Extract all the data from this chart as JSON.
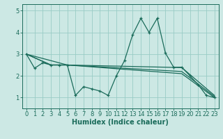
{
  "xlabel": "Humidex (Indice chaleur)",
  "xlim": [
    -0.5,
    23.5
  ],
  "ylim": [
    0.5,
    5.3
  ],
  "yticks": [
    1,
    2,
    3,
    4,
    5
  ],
  "xticks": [
    0,
    1,
    2,
    3,
    4,
    5,
    6,
    7,
    8,
    9,
    10,
    11,
    12,
    13,
    14,
    15,
    16,
    17,
    18,
    19,
    20,
    21,
    22,
    23
  ],
  "background_color": "#cce8e4",
  "grid_color": "#99ccc6",
  "line_color": "#1a6b5a",
  "line1_x": [
    0,
    1,
    2,
    3,
    4,
    5,
    6,
    7,
    8,
    9,
    10,
    11,
    12,
    13,
    14,
    15,
    16,
    17,
    18,
    19,
    20,
    21,
    22,
    23
  ],
  "line1_y": [
    3.0,
    2.35,
    2.6,
    2.5,
    2.5,
    2.5,
    1.1,
    1.5,
    1.4,
    1.3,
    1.1,
    2.0,
    2.7,
    3.9,
    4.65,
    4.0,
    4.65,
    3.05,
    2.4,
    2.4,
    2.0,
    1.6,
    1.1,
    1.0
  ],
  "line2_x": [
    0,
    3,
    5,
    19,
    23
  ],
  "line2_y": [
    3.0,
    2.5,
    2.5,
    2.38,
    1.1
  ],
  "line3_x": [
    0,
    3,
    5,
    19,
    23
  ],
  "line3_y": [
    3.0,
    2.5,
    2.5,
    2.2,
    1.05
  ],
  "line4_x": [
    0,
    5,
    19,
    23
  ],
  "line4_y": [
    3.0,
    2.5,
    2.1,
    1.0
  ],
  "tick_fontsize": 6.0,
  "xlabel_fontsize": 7.0
}
